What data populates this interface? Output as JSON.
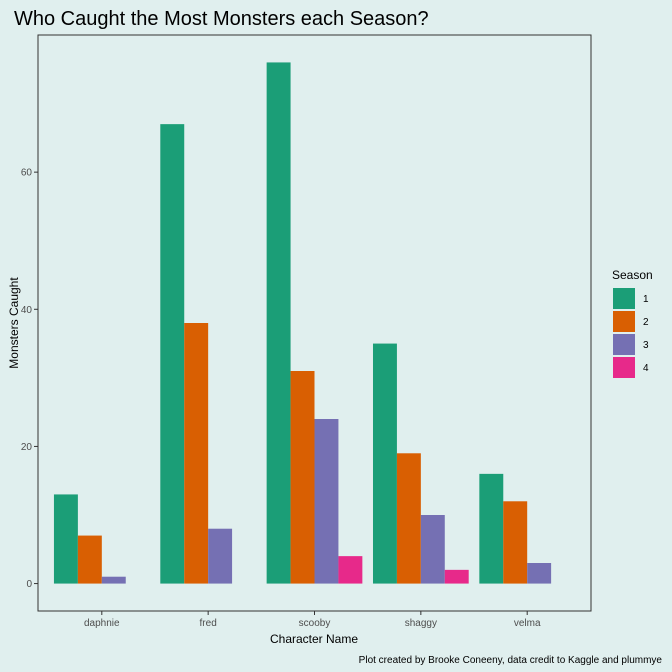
{
  "chart_data": {
    "type": "bar",
    "title": "Who Caught the Most Monsters each Season?",
    "xlabel": "Character Name",
    "ylabel": "Monsters Caught",
    "caption": "Plot created by Brooke Coneeny, data credit to Kaggle and plummye",
    "categories": [
      "daphnie",
      "fred",
      "scooby",
      "shaggy",
      "velma"
    ],
    "ylim": [
      -4,
      80
    ],
    "yticks": [
      0,
      20,
      40,
      60
    ],
    "grid": false,
    "legend": {
      "title": "Season",
      "position": "right"
    },
    "series": [
      {
        "name": "1",
        "color": "#1b9e77",
        "values": [
          13,
          67,
          76,
          35,
          16
        ]
      },
      {
        "name": "2",
        "color": "#d95f02",
        "values": [
          7,
          38,
          31,
          19,
          12
        ]
      },
      {
        "name": "3",
        "color": "#7570b3",
        "values": [
          1,
          8,
          24,
          10,
          3
        ]
      },
      {
        "name": "4",
        "color": "#e7298a",
        "values": [
          null,
          null,
          4,
          2,
          null
        ]
      }
    ]
  }
}
